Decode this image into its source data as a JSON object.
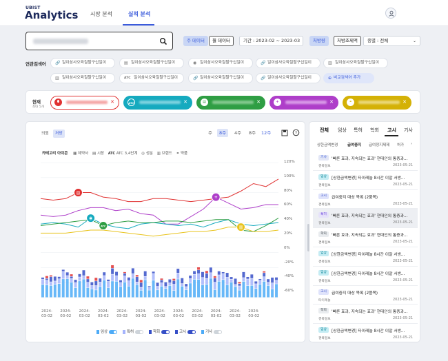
{
  "header": {
    "logo_small": "UBIST",
    "logo_big": "Analytics",
    "nav": [
      "시장 분석",
      "실적 분석"
    ]
  },
  "search": {
    "period_label": "기간 : 2023-02 ~ 2023-03",
    "toggle_main": "주 데이터",
    "toggle_month": "월 데이터",
    "toggle_rx": "처방량",
    "toggle_rx_amt": "처방조제액",
    "type_select": "종별 : 전체"
  },
  "related": {
    "label": "연관검색어",
    "chips": [
      "일이삼사오육칠팔구십일이",
      "일이삼사오육칠팔구십일이",
      "일이삼사오육칠팔구십일이",
      "일이삼사오육칠팔구십일이",
      "일이삼사오육칠팔구십일이",
      "일이삼사오육칠팔구십일이",
      "일이삼사오육칠팔구십일이",
      "일이삼사오육칠팔구십일이",
      "일이삼사오육칠팔구십일이"
    ],
    "compare_button": "비교검색어 추가"
  },
  "current": {
    "label": "현재",
    "sub": "최대 5개",
    "keywords": [
      {
        "color": "#e03131",
        "icon": "pill-icon"
      },
      {
        "color": "#15aabf",
        "icon": "ATC"
      },
      {
        "color": "#2f9e44",
        "icon": "doc-icon"
      },
      {
        "color": "#ae3ec9",
        "icon": "plus-circle-icon"
      },
      {
        "color": "#d4b106",
        "icon": "link-icon"
      }
    ]
  },
  "chart_panel": {
    "tab_all": "의원",
    "tab_selected": "처방",
    "periods": [
      "주",
      "8주",
      "4주",
      "8주",
      "12주"
    ],
    "legend_label": "카테고리 아이콘",
    "legend_items": [
      "제약사",
      "시장",
      "ATC 3,4단계",
      "성분",
      "브랜드",
      "약품"
    ],
    "bottom_legend": [
      {
        "label": "임상",
        "color": "#4dabf7"
      },
      {
        "label": "특허",
        "color": "#a5b4fc"
      },
      {
        "label": "학회",
        "color": "#364fc7"
      },
      {
        "label": "고시",
        "color": "#364fc7"
      },
      {
        "label": "기사",
        "color": "#4dabf7"
      }
    ],
    "x_labels": [
      "2024-\n03-02",
      "2024-\n03-02",
      "2024-\n03-02",
      "2024-\n03-02",
      "2024-\n03-02",
      "2024-\n03-02",
      "2024-\n03-02",
      "2024-\n03-02",
      "2024-\n03-02",
      "2024-\n03-02",
      "2024-\n03-02",
      "2024-\n03-02"
    ],
    "y_labels": [
      "120%",
      "100%",
      "80%",
      "60%",
      "40%",
      "20%",
      "0%",
      "-20%",
      "-40%",
      "-60%"
    ]
  },
  "chart_data": {
    "type": "line",
    "x": [
      "2024-03-02",
      "2024-03-02",
      "2024-03-02",
      "2024-03-02",
      "2024-03-02",
      "2024-03-02",
      "2024-03-02",
      "2024-03-02",
      "2024-03-02",
      "2024-03-02",
      "2024-03-02",
      "2024-03-02",
      "2024-03-02",
      "2024-03-02",
      "2024-03-02",
      "2024-03-02",
      "2024-03-02",
      "2024-03-02",
      "2024-03-02",
      "2024-03-02"
    ],
    "ylim": [
      -60,
      120
    ],
    "series": [
      {
        "color": "#e03131",
        "values": [
          72,
          70,
          72,
          80,
          80,
          74,
          72,
          68,
          68,
          72,
          72,
          70,
          68,
          70,
          72,
          74,
          82,
          92,
          88,
          98
        ]
      },
      {
        "color": "#ae3ec9",
        "values": [
          50,
          48,
          50,
          56,
          60,
          60,
          56,
          58,
          52,
          50,
          38,
          38,
          48,
          58,
          74,
          66,
          58,
          60,
          64,
          64
        ]
      },
      {
        "color": "#15aabf",
        "values": [
          38,
          40,
          38,
          34,
          46,
          38,
          34,
          32,
          38,
          40,
          38,
          36,
          38,
          34,
          40,
          44,
          38,
          36,
          38,
          40
        ]
      },
      {
        "color": "#2f9e44",
        "values": [
          36,
          38,
          40,
          42,
          44,
          36,
          40,
          42,
          40,
          40,
          42,
          42,
          40,
          42,
          44,
          44,
          30,
          28,
          36,
          46
        ]
      },
      {
        "color": "#e8c31b",
        "values": [
          26,
          26,
          26,
          28,
          30,
          30,
          28,
          26,
          24,
          22,
          24,
          26,
          28,
          28,
          30,
          34,
          34,
          28,
          28,
          30
        ]
      }
    ],
    "bar_colors": [
      "#4dabf7",
      "#a5b4fc",
      "#364fc7",
      "#e03131"
    ]
  },
  "news": {
    "tabs": [
      "전체",
      "임상",
      "특허",
      "학회",
      "고시",
      "기사"
    ],
    "subtabs": [
      "상한금액변경",
      "급여중지",
      "급여정지제제",
      "허가"
    ],
    "items": [
      {
        "badge": "기사",
        "badge_color": "#e2e6f6",
        "badge_text": "#3b5bdb",
        "title": "'빠른 효과, 지속되는 효과' 현대인의 통증과...",
        "source": "경북일보",
        "date": "2023-05-21",
        "sel": false
      },
      {
        "badge": "임상",
        "badge_color": "#c5ecf3",
        "badge_text": "#0c8599",
        "title": "[상한금액변경] 타이레놀 8시간 이알 서방...",
        "source": "경북일보",
        "date": "2023-05-21",
        "sel": false
      },
      {
        "badge": "고시",
        "badge_color": "#dfe3fb",
        "badge_text": "#364fc7",
        "title": "급여중지 대상 목록 (2품목)",
        "source": "경북일보",
        "date": "2023-05-21",
        "sel": false
      },
      {
        "badge": "특허",
        "badge_color": "#e6e2fa",
        "badge_text": "#6741d9",
        "title": "'빠른 효과, 지속되는 효과' 현대인의 통증과...",
        "source": "경북일보",
        "date": "2023-05-21",
        "sel": true
      },
      {
        "badge": "학회",
        "badge_color": "#e9ecef",
        "badge_text": "#495057",
        "title": "'빠른 효과, 지속되는 효과' 현대인의 통증과...",
        "source": "경북일보",
        "date": "2023-05-21",
        "sel": false
      },
      {
        "badge": "임상",
        "badge_color": "#c5ecf3",
        "badge_text": "#0c8599",
        "title": "[상한금액변경] 타이레놀 8시간 이알 서방...",
        "source": "경북일보",
        "date": "2023-05-21",
        "sel": false
      },
      {
        "badge": "임상",
        "badge_color": "#c5ecf3",
        "badge_text": "#0c8599",
        "title": "[상한금액변경] 타이레놀 8시간 이알 서방...",
        "source": "경북일보",
        "date": "2023-05-21",
        "sel": false
      },
      {
        "badge": "고시",
        "badge_color": "#dfe3fb",
        "badge_text": "#364fc7",
        "title": "급여중지 대상 목록 (2품목)",
        "source": "타이레놀",
        "date": "2023-05-21",
        "sel": false
      },
      {
        "badge": "학회",
        "badge_color": "#e9ecef",
        "badge_text": "#495057",
        "title": "'빠른 효과, 지속되는 효과' 현대인의 통증과...",
        "source": "경북일보",
        "date": "2023-05-21",
        "sel": false
      },
      {
        "badge": "임상",
        "badge_color": "#c5ecf3",
        "badge_text": "#0c8599",
        "title": "[상한금액변경] 타이레놀 8시간 이알 서방...",
        "source": "경북일보",
        "date": "2023-05-21",
        "sel": false
      }
    ]
  }
}
